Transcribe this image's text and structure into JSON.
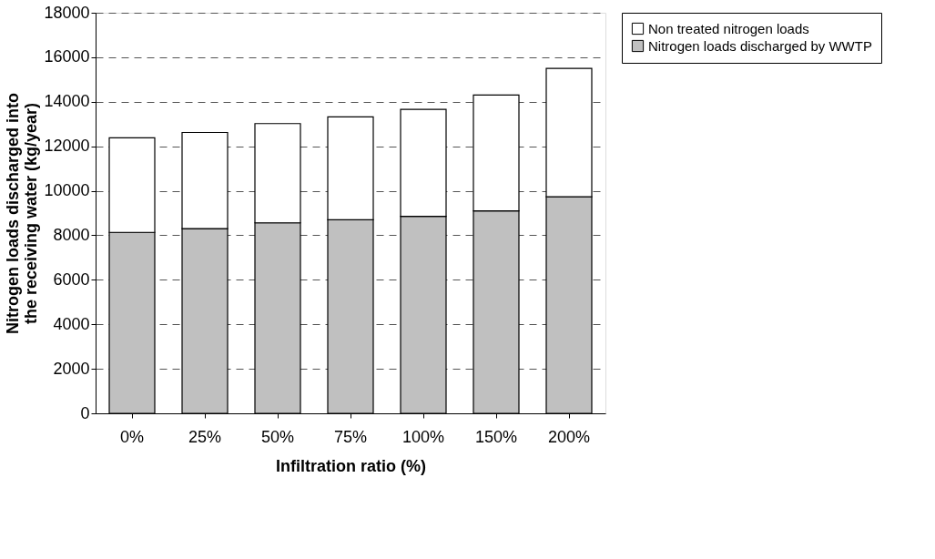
{
  "chart_data": {
    "type": "bar",
    "stacked": true,
    "xlabel": "Infiltration ratio (%)",
    "ylabel": "Nitrogen loads discharged into the receiving water (kg/year)",
    "categories": [
      "0%",
      "25%",
      "50%",
      "75%",
      "100%",
      "150%",
      "200%"
    ],
    "series": [
      {
        "name": "Nitrogen loads discharged by WWTP",
        "color": "#c0c0c0",
        "values": [
          8130,
          8300,
          8560,
          8700,
          8850,
          9100,
          9730
        ]
      },
      {
        "name": "Non treated nitrogen loads",
        "color": "#ffffff",
        "values": [
          4250,
          4320,
          4460,
          4620,
          4810,
          5200,
          5770
        ]
      }
    ],
    "ylim": [
      0,
      18000
    ],
    "yticks": [
      0,
      2000,
      4000,
      6000,
      8000,
      10000,
      12000,
      14000,
      16000,
      18000
    ],
    "grid": "y",
    "legend": "right"
  }
}
